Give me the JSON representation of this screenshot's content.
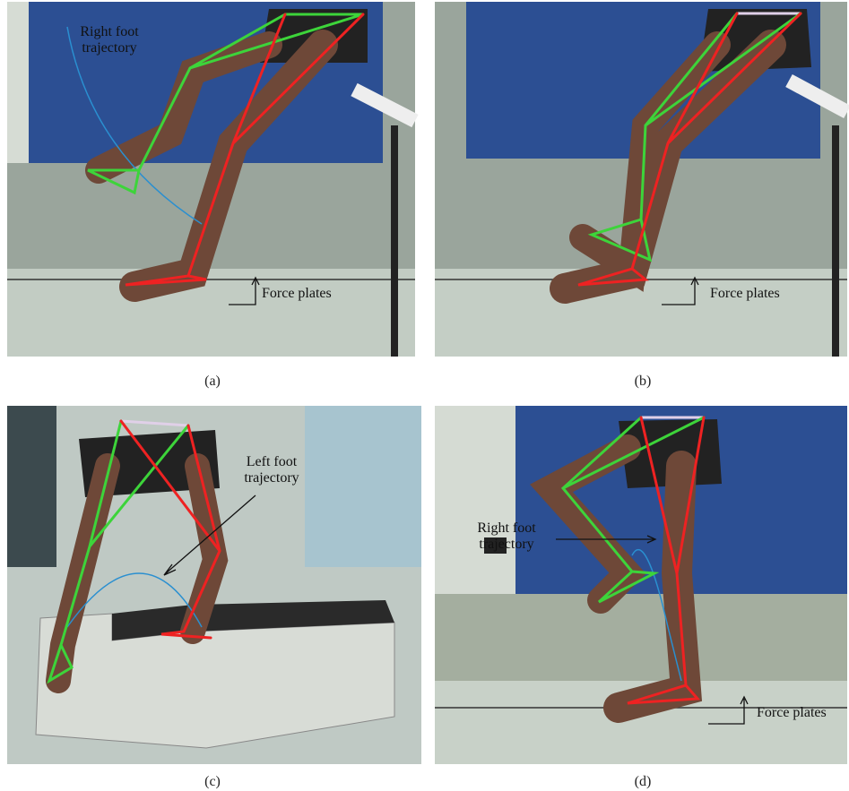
{
  "panels": [
    {
      "caption": "(a)",
      "annotations": [
        {
          "lines": [
            "Right foot",
            "trajectory"
          ]
        },
        {
          "lines": [
            "Force plates"
          ]
        }
      ]
    },
    {
      "caption": "(b)",
      "annotations": [
        {
          "lines": [
            "Force plates"
          ]
        }
      ]
    },
    {
      "caption": "(c)",
      "annotations": [
        {
          "lines": [
            "Left foot",
            "trajectory"
          ]
        }
      ]
    },
    {
      "caption": "(d)",
      "annotations": [
        {
          "lines": [
            "Right foot",
            "trajectory"
          ]
        },
        {
          "lines": [
            "Force plates"
          ]
        }
      ]
    }
  ]
}
